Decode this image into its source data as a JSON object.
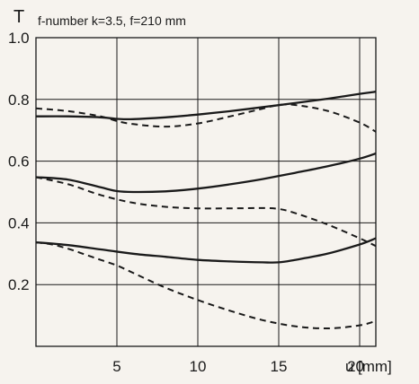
{
  "chart_data": {
    "type": "line",
    "ylabel": "T",
    "title": "f-number k=3.5, f=210 mm",
    "xlabel_var": "u",
    "xlabel_unit": "[mm]",
    "xlim": [
      0,
      21
    ],
    "ylim": [
      0,
      1.0
    ],
    "x_ticks": [
      "5",
      "10",
      "15",
      "20"
    ],
    "y_ticks": [
      "0.2",
      "0.4",
      "0.6",
      "0.8",
      "1.0"
    ],
    "grid": true,
    "series": [
      {
        "style": "solid",
        "x": [
          0,
          2,
          4,
          5,
          6,
          8,
          10,
          12,
          14,
          16,
          18,
          20,
          21
        ],
        "y": [
          0.745,
          0.745,
          0.742,
          0.737,
          0.736,
          0.742,
          0.751,
          0.762,
          0.775,
          0.788,
          0.802,
          0.818,
          0.825
        ]
      },
      {
        "style": "dashed",
        "x": [
          0,
          2,
          4,
          5,
          6,
          8,
          10,
          12,
          14,
          15,
          16,
          18,
          20,
          21
        ],
        "y": [
          0.771,
          0.762,
          0.745,
          0.73,
          0.72,
          0.712,
          0.722,
          0.745,
          0.77,
          0.782,
          0.782,
          0.763,
          0.725,
          0.695
        ]
      },
      {
        "style": "solid",
        "x": [
          0,
          2,
          4,
          5,
          6,
          8,
          10,
          12,
          14,
          16,
          18,
          20,
          21
        ],
        "y": [
          0.548,
          0.54,
          0.515,
          0.503,
          0.5,
          0.502,
          0.511,
          0.525,
          0.542,
          0.562,
          0.583,
          0.608,
          0.625
        ]
      },
      {
        "style": "dashed",
        "x": [
          0,
          2,
          4,
          6,
          8,
          10,
          12,
          14,
          15,
          16,
          18,
          20,
          21
        ],
        "y": [
          0.548,
          0.525,
          0.49,
          0.465,
          0.452,
          0.447,
          0.447,
          0.448,
          0.445,
          0.432,
          0.395,
          0.35,
          0.325
        ]
      },
      {
        "style": "solid",
        "x": [
          0,
          2,
          4,
          6,
          8,
          10,
          12,
          14,
          15,
          16,
          18,
          20,
          21
        ],
        "y": [
          0.337,
          0.328,
          0.314,
          0.3,
          0.29,
          0.28,
          0.275,
          0.272,
          0.272,
          0.28,
          0.3,
          0.33,
          0.35
        ]
      },
      {
        "style": "dashed",
        "x": [
          0,
          1,
          2,
          3,
          4,
          5,
          6,
          8,
          10,
          12,
          14,
          16,
          18,
          20,
          21
        ],
        "y": [
          0.337,
          0.33,
          0.316,
          0.298,
          0.28,
          0.262,
          0.238,
          0.19,
          0.15,
          0.115,
          0.085,
          0.065,
          0.058,
          0.068,
          0.082
        ]
      }
    ]
  }
}
